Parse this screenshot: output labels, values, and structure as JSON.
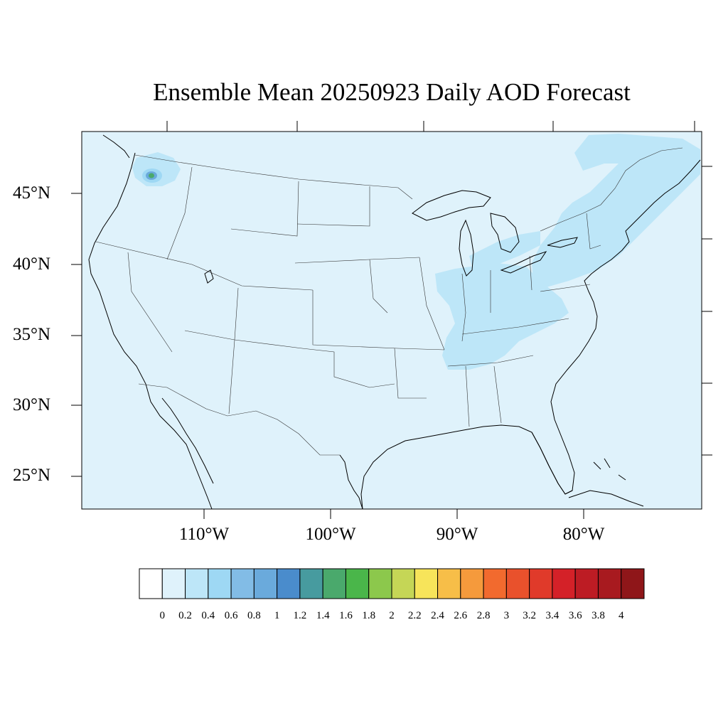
{
  "title": "Ensemble Mean 20250923 Daily AOD Forecast",
  "map": {
    "projection": "lambert-conformal",
    "background_color": "#dff2fb",
    "lat_labels": [
      "45°N",
      "40°N",
      "35°N",
      "30°N",
      "25°N"
    ],
    "lon_labels": [
      "110°W",
      "100°W",
      "90°W",
      "80°W"
    ],
    "features": [
      {
        "name": "smoke-plume-pacific-northwest",
        "aod_range": "0.2–1.6",
        "peak_color": "#4aa96c"
      },
      {
        "name": "haze-northeast-corridor",
        "aod_range": "0.2–0.4"
      },
      {
        "name": "haze-ohio-valley-to-mississippi",
        "aod_range": "0.2–0.4"
      }
    ]
  },
  "colorbar": {
    "labels": [
      "0",
      "0.2",
      "0.4",
      "0.6",
      "0.8",
      "1",
      "1.2",
      "1.4",
      "1.6",
      "1.8",
      "2",
      "2.2",
      "2.4",
      "2.6",
      "2.8",
      "3",
      "3.2",
      "3.4",
      "3.6",
      "3.8",
      "4"
    ],
    "colors": [
      "#ffffff",
      "#dff2fb",
      "#bde6f8",
      "#9ed8f4",
      "#82bce6",
      "#6aaadc",
      "#4a8ccc",
      "#479b9f",
      "#4aa96c",
      "#4ab64a",
      "#8cc84c",
      "#c5d656",
      "#f7e45a",
      "#f7be48",
      "#f59a3c",
      "#f26a2e",
      "#e9512c",
      "#e03a2a",
      "#d42128",
      "#bd1c24",
      "#a81a1f",
      "#8f1619"
    ]
  }
}
